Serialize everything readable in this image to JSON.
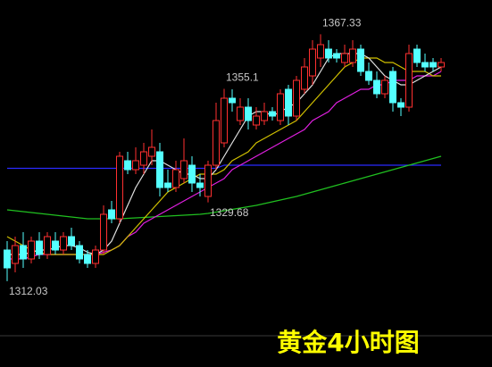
{
  "chart_data": {
    "type": "candlestick",
    "title": "黄金4小时图",
    "title_color": "#ffff00",
    "background": "#000000",
    "up_color": "#ff3030",
    "down_color": "#54ffff",
    "ylim": [
      1300,
      1375
    ],
    "categories": [
      null,
      null,
      null,
      null,
      null,
      null,
      null,
      null,
      null,
      null,
      null,
      null,
      null,
      null,
      null,
      null,
      null,
      null,
      null,
      null,
      null,
      null,
      null,
      null,
      null,
      null,
      null,
      null,
      null,
      null,
      null,
      null,
      null,
      null,
      null,
      null,
      null,
      null,
      null,
      null,
      null,
      null,
      null,
      null,
      null,
      null,
      null,
      null,
      null,
      null,
      null,
      null,
      null,
      null,
      null
    ],
    "open": [
      1319,
      1316,
      1320,
      1317,
      1321,
      1318,
      1321,
      1319,
      1322,
      1320,
      1318,
      1316,
      1319,
      1328,
      1326,
      1339,
      1337,
      1338,
      1340,
      1341,
      1334,
      1333,
      1335,
      1338,
      1334,
      1331,
      1338,
      1343,
      1353,
      1348,
      1351,
      1347,
      1348,
      1350,
      1348,
      1355,
      1349,
      1355,
      1358,
      1362,
      1364,
      1363,
      1361,
      1361,
      1364,
      1359,
      1357,
      1354,
      1359,
      1352,
      1351,
      1364,
      1361,
      1361,
      1360
    ],
    "high": [
      1321,
      1322,
      1323,
      1322,
      1323,
      1323,
      1323,
      1323,
      1324,
      1321,
      1319,
      1320,
      1329,
      1330,
      1341,
      1341,
      1342,
      1343,
      1346,
      1343,
      1337,
      1339,
      1344,
      1340,
      1336,
      1339,
      1352,
      1355.1,
      1355,
      1353,
      1353,
      1351,
      1352,
      1351,
      1355,
      1356,
      1358,
      1362,
      1366,
      1367.33,
      1366,
      1364,
      1365,
      1366,
      1365,
      1361,
      1359,
      1358,
      1360,
      1353,
      1365,
      1365,
      1363,
      1362,
      1362
    ],
    "low": [
      1312.03,
      1314,
      1315,
      1316,
      1317,
      1317,
      1318,
      1318,
      1319,
      1316,
      1315,
      1315,
      1318,
      1325,
      1325,
      1336,
      1336,
      1336,
      1338,
      1331,
      1332,
      1332,
      1334,
      1332,
      1331,
      1329.68,
      1337,
      1342,
      1350,
      1347,
      1346,
      1346,
      1347,
      1348,
      1347,
      1347,
      1348,
      1354,
      1356,
      1360,
      1361,
      1361,
      1360,
      1360,
      1358,
      1356,
      1353,
      1353,
      1350,
      1349,
      1350,
      1360,
      1359,
      1359,
      1359
    ],
    "close": [
      1315,
      1320,
      1317,
      1321,
      1318,
      1322,
      1319,
      1322,
      1320,
      1317,
      1316,
      1319,
      1327,
      1326,
      1340,
      1337,
      1339,
      1341,
      1342,
      1333,
      1333,
      1337,
      1339,
      1334,
      1333,
      1338,
      1348,
      1353,
      1352,
      1351,
      1348,
      1349,
      1350,
      1349,
      1354,
      1349,
      1357,
      1360,
      1364,
      1365,
      1362,
      1362,
      1363,
      1364,
      1359,
      1357,
      1354,
      1357,
      1352,
      1351,
      1363,
      1361,
      1360,
      1360,
      1361
    ],
    "lines": [
      {
        "color": "#2a2aff",
        "values": [
          1337.3,
          1337.3,
          1337.3,
          1337.3,
          1337.3,
          1337.3,
          1337.3,
          1337.3,
          1337.3,
          1337.3,
          1337.3,
          1337.3,
          1337.3,
          1337.3,
          1337.3,
          1337.3,
          1337.3,
          1337.3,
          1337.3,
          1337.3,
          1337.3,
          1337.3,
          1337.3,
          1337.3,
          1337.3,
          1337.3,
          1337.3,
          1338,
          1338,
          1338,
          1338,
          1338,
          1338,
          1338,
          1338,
          1338,
          1338,
          1338,
          1338,
          1338,
          1338,
          1338,
          1338,
          1338,
          1338,
          1338,
          1338,
          1338,
          1338,
          1338,
          1338,
          1338,
          1338,
          1338,
          1338
        ]
      },
      {
        "color": "#20c020",
        "values": [
          1328,
          1327.8,
          1327.6,
          1327.4,
          1327.2,
          1327,
          1326.8,
          1326.6,
          1326.4,
          1326.2,
          1326,
          1326,
          1326,
          1326,
          1326,
          1326.1,
          1326.2,
          1326.3,
          1326.4,
          1326.5,
          1326.6,
          1326.7,
          1326.8,
          1326.9,
          1327,
          1327.2,
          1327.5,
          1327.8,
          1328.1,
          1328.4,
          1328.7,
          1329,
          1329.4,
          1329.8,
          1330.2,
          1330.6,
          1331,
          1331.5,
          1332,
          1332.5,
          1333,
          1333.5,
          1334,
          1334.5,
          1335,
          1335.5,
          1336,
          1336.5,
          1337,
          1337.5,
          1338,
          1338.5,
          1339,
          1339.5,
          1340
        ]
      },
      {
        "color": "#e020e0",
        "values": [
          1317,
          1317,
          1317,
          1317.5,
          1318,
          1318,
          1318,
          1318,
          1318,
          1318,
          1318,
          1318,
          1318.5,
          1319,
          1320,
          1322,
          1323,
          1325,
          1326,
          1327,
          1328,
          1329,
          1330,
          1331,
          1332,
          1333,
          1334,
          1335,
          1337,
          1338,
          1339,
          1340,
          1341,
          1342,
          1343,
          1344,
          1345,
          1346,
          1348,
          1349,
          1350,
          1352,
          1353,
          1354,
          1355,
          1355,
          1356,
          1356,
          1357,
          1357,
          1357,
          1358,
          1358,
          1358,
          1359
        ]
      },
      {
        "color": "#d0c000",
        "values": [
          1322,
          1321,
          1320,
          1319,
          1318.5,
          1318,
          1318,
          1318,
          1318,
          1318,
          1318,
          1318,
          1318,
          1319,
          1320,
          1322,
          1324,
          1326,
          1328,
          1330,
          1332,
          1333,
          1334,
          1335,
          1336,
          1336,
          1336,
          1337,
          1339,
          1340,
          1341,
          1343,
          1344,
          1345,
          1346,
          1347,
          1348,
          1350,
          1352,
          1354,
          1356,
          1358,
          1360,
          1361,
          1362,
          1362,
          1362,
          1361,
          1361,
          1360,
          1359,
          1359,
          1359,
          1358,
          1358
        ]
      },
      {
        "color": "#e0e0e0",
        "values": [
          1318,
          1318,
          1318,
          1318.5,
          1319,
          1319,
          1319.5,
          1320,
          1320,
          1319.5,
          1318.5,
          1318,
          1319,
          1321,
          1325,
          1329,
          1333,
          1336,
          1339,
          1339,
          1338,
          1337,
          1336,
          1336,
          1335,
          1335,
          1337,
          1340,
          1343,
          1346,
          1349,
          1350,
          1350,
          1349,
          1350,
          1351,
          1352,
          1354,
          1356,
          1359,
          1362,
          1363,
          1363,
          1363,
          1363,
          1362,
          1360,
          1358,
          1357,
          1356,
          1356,
          1357,
          1358,
          1359,
          1360
        ]
      }
    ],
    "annotations": [
      {
        "index": 39,
        "value": 1367.33
      },
      {
        "index": 27,
        "value": 1355.1
      },
      {
        "index": 25,
        "value": 1329.68
      },
      {
        "index": 0,
        "value": 1312.03
      }
    ]
  }
}
